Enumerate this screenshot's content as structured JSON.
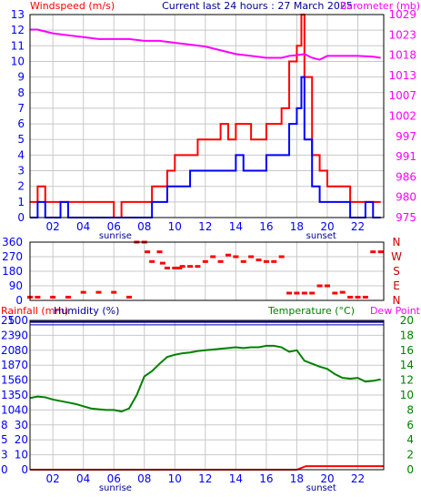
{
  "header": {
    "left_title": "Windspeed (m/s)",
    "center_title": "Current last 24 hours : 27 March 2025",
    "right_title": "Barometer (mb)"
  },
  "colors": {
    "wind": "#ff0000",
    "gust": "#ff0000",
    "avg_wind": "#0000ff",
    "barometer": "#ff00ff",
    "direction": "#ff0000",
    "rain": "#ff0000",
    "humidity": "#000099",
    "temperature": "#008000",
    "dewpoint": "#ff00ff",
    "axis_blue": "#0000ff",
    "axis_green": "#008000",
    "grid": "#c8c8c8"
  },
  "time_axis": {
    "ticks": [
      "02",
      "04",
      "06",
      "08",
      "10",
      "12",
      "14",
      "16",
      "18",
      "20",
      "22"
    ],
    "tick_hours": [
      2,
      4,
      6,
      8,
      10,
      12,
      14,
      16,
      18,
      20,
      22
    ],
    "sunrise_label": "sunrise",
    "sunrise_hour": 6.1,
    "sunset_label": "sunset",
    "sunset_hour": 19.6
  },
  "chart_data": [
    {
      "type": "line",
      "name": "wind",
      "title": "Current last 24 hours : 27 March 2025",
      "ylabel_left": "Windspeed (m/s)",
      "ylabel_right": "Barometer (mb)",
      "x_range": [
        0.5,
        23.7
      ],
      "ylim_left": [
        0,
        13
      ],
      "ylim_right": [
        975,
        1029
      ],
      "y_ticks_left": [
        "0",
        "1",
        "2",
        "3",
        "4",
        "5",
        "6",
        "7",
        "8",
        "9",
        "10",
        "11",
        "12",
        "13"
      ],
      "y_ticks_right": [
        "975",
        "980",
        "986",
        "991",
        "997",
        "1002",
        "1007",
        "1013",
        "1018",
        "1023",
        "1029"
      ],
      "series": [
        {
          "name": "gust",
          "hours": [
            0.5,
            1,
            1.5,
            2,
            2.5,
            3,
            3.5,
            4,
            4.5,
            5,
            5.5,
            6,
            6.5,
            7,
            7.5,
            8,
            8.5,
            9,
            9.5,
            10,
            10.5,
            11,
            11.5,
            12,
            12.5,
            13,
            13.5,
            14,
            14.5,
            15,
            15.5,
            16,
            16.5,
            17,
            17.5,
            18,
            18.3,
            18.5,
            19,
            19.5,
            20,
            20.5,
            21,
            21.5,
            22,
            22.5,
            23,
            23.5
          ],
          "values": [
            1,
            2,
            1,
            1,
            1,
            1,
            1,
            1,
            1,
            1,
            1,
            0,
            1,
            1,
            1,
            1,
            2,
            2,
            3,
            4,
            4,
            4,
            5,
            5,
            5,
            6,
            5,
            6,
            6,
            5,
            5,
            6,
            6,
            7,
            10,
            11,
            13,
            9,
            4,
            3,
            2,
            2,
            2,
            1,
            1,
            1,
            1,
            1
          ]
        },
        {
          "name": "average",
          "hours": [
            0.5,
            1,
            1.5,
            2,
            2.5,
            3,
            3.5,
            4,
            4.5,
            5,
            5.5,
            6,
            6.5,
            7,
            7.5,
            8,
            8.5,
            9,
            9.5,
            10,
            10.5,
            11,
            11.5,
            12,
            12.5,
            13,
            13.5,
            14,
            14.5,
            15,
            15.5,
            16,
            16.5,
            17,
            17.5,
            18,
            18.3,
            18.5,
            19,
            19.5,
            20,
            20.5,
            21,
            21.5,
            22,
            22.5,
            23,
            23.5
          ],
          "values": [
            0,
            1,
            0,
            0,
            1,
            0,
            0,
            0,
            0,
            0,
            0,
            0,
            0,
            0,
            0,
            0,
            1,
            1,
            2,
            2,
            2,
            3,
            3,
            3,
            3,
            3,
            3,
            4,
            3,
            3,
            3,
            4,
            4,
            4,
            6,
            7,
            9,
            5,
            2,
            1,
            1,
            1,
            1,
            0,
            0,
            1,
            0,
            0
          ]
        },
        {
          "name": "barometer",
          "axis": "right",
          "hours": [
            0.5,
            1,
            2,
            3,
            4,
            5,
            6,
            7,
            8,
            9,
            10,
            11,
            12,
            13,
            14,
            15,
            16,
            17,
            17.5,
            18,
            18.5,
            19,
            19.5,
            20,
            21,
            22,
            23,
            23.5
          ],
          "values": [
            1025,
            1025,
            1024,
            1023.5,
            1023,
            1022.5,
            1022.5,
            1022.5,
            1022,
            1022,
            1021.5,
            1021,
            1020.5,
            1019.5,
            1018.5,
            1018,
            1017.5,
            1017.5,
            1018,
            1018.2,
            1018.5,
            1017.5,
            1017,
            1018,
            1018,
            1018,
            1017.8,
            1017.5
          ]
        }
      ]
    },
    {
      "type": "scatter",
      "name": "wind_direction",
      "ylim": [
        0,
        360
      ],
      "y_ticks": [
        "0",
        "90",
        "180",
        "270",
        "360"
      ],
      "y_ticks_right": [
        "N",
        "E",
        "S",
        "W",
        "N"
      ],
      "hours": [
        0.5,
        1,
        2,
        3,
        4,
        5,
        6,
        7,
        7.5,
        8,
        8.2,
        8.5,
        9,
        9.2,
        9.5,
        10,
        10.3,
        10.5,
        11,
        11.5,
        12,
        12.5,
        13,
        13.5,
        14,
        14.5,
        15,
        15.5,
        16,
        16.5,
        17,
        17.5,
        18,
        18.5,
        19,
        19.5,
        20,
        20.5,
        21,
        21.5,
        22,
        22.5,
        23,
        23.5
      ],
      "values": [
        20,
        20,
        20,
        20,
        50,
        50,
        50,
        20,
        360,
        360,
        300,
        240,
        300,
        230,
        200,
        200,
        200,
        210,
        210,
        210,
        240,
        270,
        240,
        280,
        270,
        240,
        270,
        250,
        240,
        240,
        270,
        45,
        45,
        45,
        45,
        90,
        90,
        45,
        50,
        20,
        20,
        20,
        300,
        300
      ]
    },
    {
      "type": "line",
      "name": "rain_humidity_temperature",
      "ylabel_left": "Rainfall (mm)",
      "ylabel_left_2": "Humidity (%)",
      "ylabel_right": "Temperature (°C)",
      "ylabel_right_2": "Dew Point",
      "ylim_humidity": [
        0,
        100
      ],
      "ylim_rain": [
        0,
        25
      ],
      "ylim_temperature": [
        0,
        20
      ],
      "y_ticks_humidity": [
        "0",
        "10",
        "20",
        "30",
        "40",
        "50",
        "60",
        "70",
        "80",
        "90",
        "100"
      ],
      "y_ticks_rain": [
        "0",
        "3",
        "5",
        "8",
        "10",
        "13",
        "15",
        "18",
        "20",
        "23",
        "25"
      ],
      "y_ticks_temperature": [
        "0",
        "2",
        "4",
        "6",
        "8",
        "10",
        "12",
        "14",
        "16",
        "18",
        "20"
      ],
      "series": [
        {
          "name": "temperature",
          "hours": [
            0.5,
            1,
            1.5,
            2,
            2.5,
            3,
            3.5,
            4,
            4.5,
            5,
            5.5,
            6,
            6.5,
            7,
            7.5,
            8,
            8.5,
            9,
            9.5,
            10,
            10.5,
            11,
            11.5,
            12,
            12.5,
            13,
            13.5,
            14,
            14.5,
            15,
            15.5,
            16,
            16.5,
            17,
            17.5,
            18,
            18.5,
            19,
            19.5,
            20,
            20.5,
            21,
            21.5,
            22,
            22.5,
            23,
            23.5
          ],
          "values": [
            9.6,
            9.8,
            9.7,
            9.4,
            9.2,
            9.0,
            8.8,
            8.5,
            8.2,
            8.1,
            8.0,
            8.0,
            7.8,
            8.2,
            10,
            12.5,
            13.2,
            14.2,
            15.1,
            15.4,
            15.6,
            15.7,
            15.9,
            16.0,
            16.1,
            16.2,
            16.3,
            16.4,
            16.3,
            16.4,
            16.4,
            16.6,
            16.6,
            16.4,
            15.8,
            16.0,
            14.6,
            14.2,
            13.8,
            13.5,
            12.8,
            12.3,
            12.2,
            12.3,
            11.8,
            11.9,
            12.1
          ]
        },
        {
          "name": "humidity",
          "hours": [
            0.5,
            23.7
          ],
          "values": [
            99,
            99
          ]
        },
        {
          "name": "rainfall",
          "hours": [
            0.5,
            18,
            18.6,
            23.7
          ],
          "values": [
            0,
            0,
            0.6,
            0.6
          ]
        }
      ]
    }
  ]
}
